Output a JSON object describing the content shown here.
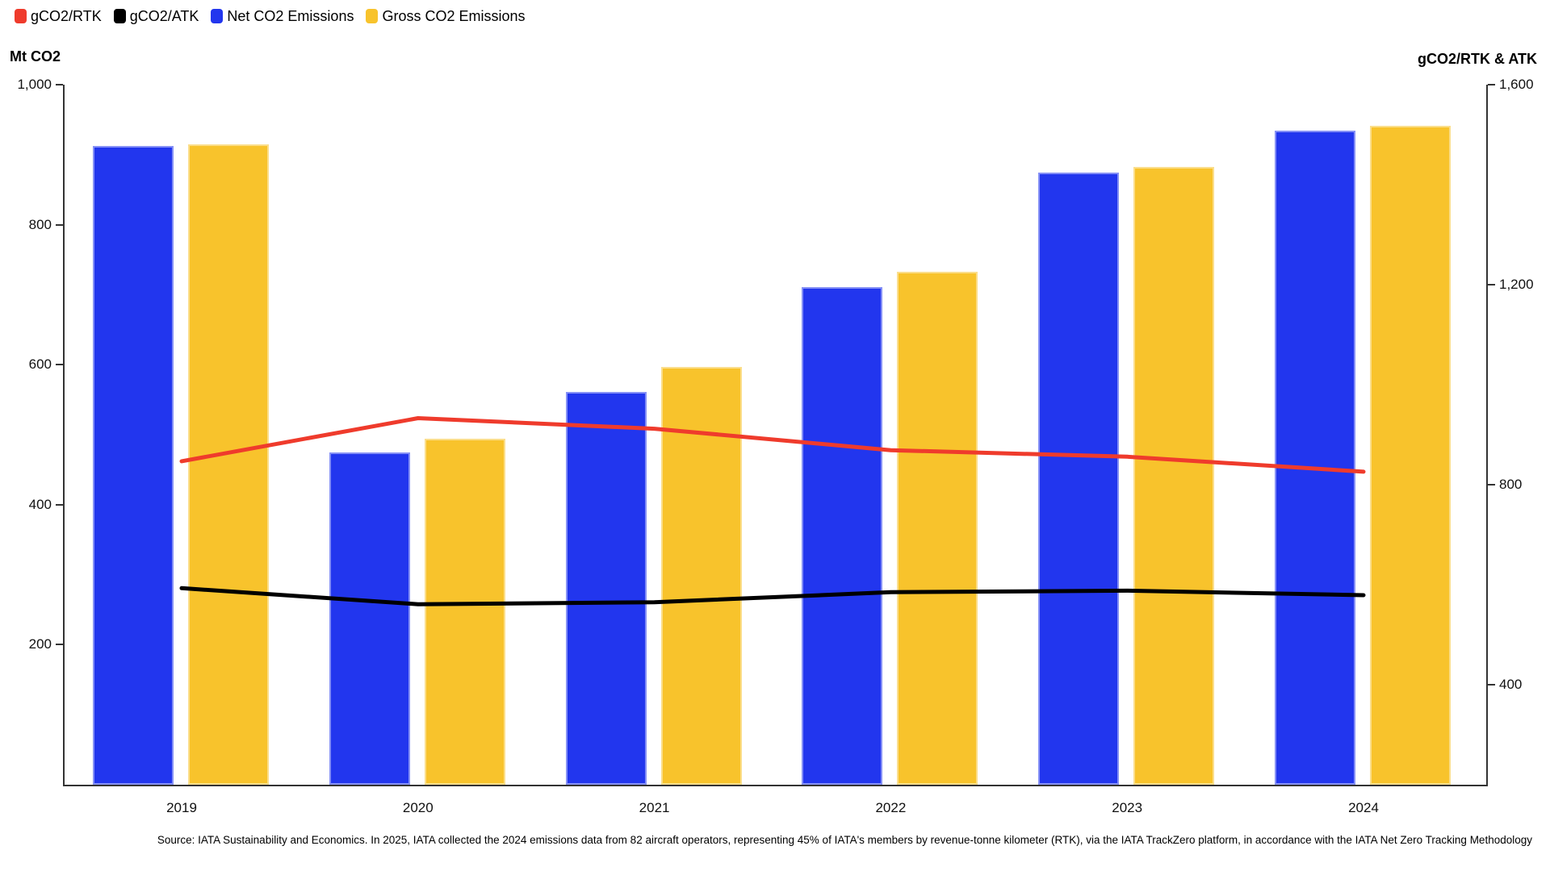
{
  "legend": [
    {
      "label": "gCO2/RTK",
      "color": "#EF3B2C",
      "series": "gco2_rtk"
    },
    {
      "label": "gCO2/ATK",
      "color": "#000000",
      "series": "gco2_atk"
    },
    {
      "label": "Net CO2 Emissions",
      "color": "#2236EE",
      "series": "net_co2"
    },
    {
      "label": "Gross CO2 Emissions",
      "color": "#F8C32C",
      "series": "gross_co2"
    }
  ],
  "chart_data": {
    "type": "bar",
    "subtype": "grouped bars with two overlay lines (dual axis)",
    "categories": [
      "2019",
      "2020",
      "2021",
      "2022",
      "2023",
      "2024"
    ],
    "series": [
      {
        "name": "Net CO2 Emissions",
        "type": "bar",
        "axis": "left",
        "color": "#2236EE",
        "values": [
          913,
          475,
          561,
          711,
          874,
          934
        ]
      },
      {
        "name": "Gross CO2 Emissions",
        "type": "bar",
        "axis": "left",
        "color": "#F8C32C",
        "values": [
          915,
          494,
          597,
          733,
          882,
          941
        ]
      },
      {
        "name": "gCO2/RTK",
        "type": "line",
        "axis": "right",
        "color": "#EF3B2C",
        "values": [
          847,
          933,
          912,
          869,
          856,
          826
        ]
      },
      {
        "name": "gCO2/ATK",
        "type": "line",
        "axis": "right",
        "color": "#000000",
        "values": [
          593,
          561,
          565,
          585,
          588,
          579
        ]
      }
    ],
    "left_axis": {
      "title": "Mt CO2",
      "min": 0,
      "max": 1000,
      "ticks": [
        200,
        400,
        600,
        800,
        1000
      ],
      "tick_labels": [
        "200",
        "400",
        "600",
        "800",
        "1,000"
      ]
    },
    "right_axis": {
      "title": "gCO2/RTK & ATK",
      "min": 200,
      "max": 1600,
      "ticks": [
        400,
        800,
        1200,
        1600
      ],
      "tick_labels": [
        "400",
        "800",
        "1,200",
        "1,600"
      ]
    },
    "grid": false,
    "legend_position": "top-left"
  },
  "source_note": "Source: IATA Sustainability and Economics. In 2025, IATA collected the 2024 emissions data from 82 aircraft operators, representing 45% of IATA's members by revenue-tonne kilometer (RTK), via the IATA TrackZero platform, in accordance with the IATA Net Zero Tracking Methodology"
}
